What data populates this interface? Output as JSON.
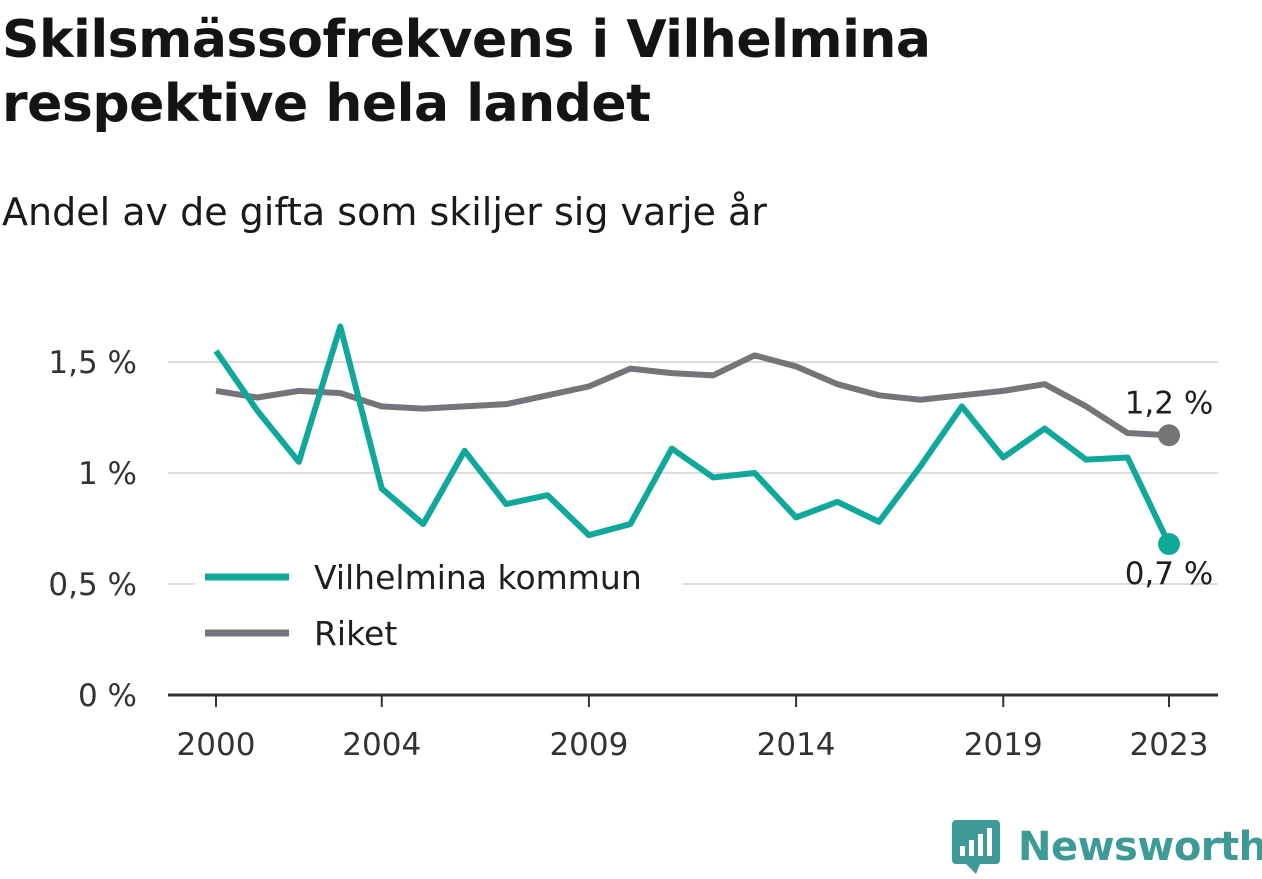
{
  "title": "Skilsmässofrekvens i Vilhelmina respektive hela landet",
  "subtitle": "Andel av de gifta som skiljer sig varje år",
  "brand": {
    "name": "Newsworthy",
    "icon": "bar-chart-speech-bubble-icon",
    "color": "#3d9a96"
  },
  "chart_data": {
    "type": "line",
    "title": "Skilsmässofrekvens i Vilhelmina respektive hela landet",
    "subtitle": "Andel av de gifta som skiljer sig varje år",
    "xlabel": "",
    "ylabel": "",
    "x": [
      2000,
      2001,
      2002,
      2003,
      2004,
      2005,
      2006,
      2007,
      2008,
      2009,
      2010,
      2011,
      2012,
      2013,
      2014,
      2015,
      2016,
      2017,
      2018,
      2019,
      2020,
      2021,
      2022,
      2023
    ],
    "x_ticks": [
      2000,
      2004,
      2009,
      2014,
      2019,
      2023
    ],
    "x_tick_labels": [
      "2000",
      "2004",
      "2009",
      "2014",
      "2019",
      "2023"
    ],
    "y_ticks": [
      0,
      0.5,
      1,
      1.5
    ],
    "y_tick_labels": [
      "0 %",
      "0,5 %",
      "1 %",
      "1,5 %"
    ],
    "ylim": [
      0,
      1.75
    ],
    "grid": "horizontal",
    "legend_position": "bottom-left",
    "series": [
      {
        "name": "Vilhelmina kommun",
        "color": "#0fa89a",
        "values": [
          1.55,
          1.28,
          1.05,
          1.66,
          0.93,
          0.77,
          1.1,
          0.86,
          0.9,
          0.72,
          0.77,
          1.11,
          0.98,
          1.0,
          0.8,
          0.87,
          0.78,
          1.03,
          1.3,
          1.07,
          1.2,
          1.06,
          1.07,
          0.68
        ],
        "end_label": "0,7 %"
      },
      {
        "name": "Riket",
        "color": "#75747b",
        "values": [
          1.37,
          1.34,
          1.37,
          1.36,
          1.3,
          1.29,
          1.3,
          1.31,
          1.35,
          1.39,
          1.47,
          1.45,
          1.44,
          1.53,
          1.48,
          1.4,
          1.35,
          1.33,
          1.35,
          1.37,
          1.4,
          1.3,
          1.18,
          1.17
        ],
        "end_label": "1,2 %"
      }
    ]
  }
}
